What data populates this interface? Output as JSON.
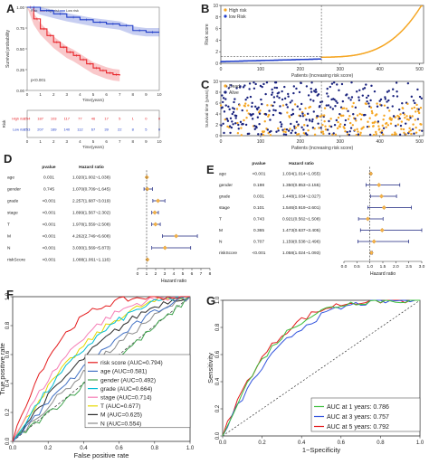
{
  "panel_labels": {
    "A": "A",
    "B": "B",
    "C": "C",
    "D": "D",
    "E": "E",
    "F": "F",
    "G": "G"
  },
  "colors": {
    "high_risk": "#e8252a",
    "low_risk": "#1e3cc8",
    "orange": "#f5a623",
    "navy": "#1a237e",
    "forest_cross": "#f6b24a"
  },
  "chart_data": [
    {
      "id": "A",
      "type": "line",
      "kind": "kaplan-meier",
      "ylabel": "Survival probability",
      "xlabel": "Time(years)",
      "legend": [
        "Risk",
        "High risk",
        "Low risk"
      ],
      "pvalue_text": "p<0.001",
      "xlim": [
        0,
        10
      ],
      "ylim": [
        0,
        1
      ],
      "xticks": [
        "0",
        "1",
        "2",
        "3",
        "4",
        "5",
        "6",
        "7",
        "8",
        "9",
        "10"
      ],
      "yticks": [
        "0.00",
        "0.25",
        "0.50",
        "0.75",
        "1.00"
      ],
      "series": [
        {
          "name": "High risk",
          "x": [
            0,
            0.5,
            1,
            1.5,
            2,
            2.5,
            3,
            3.5,
            4,
            4.5,
            5,
            5.5,
            6,
            6.5,
            7
          ],
          "y": [
            1.0,
            0.86,
            0.74,
            0.66,
            0.58,
            0.52,
            0.46,
            0.42,
            0.37,
            0.32,
            0.27,
            0.24,
            0.21,
            0.19,
            0.18
          ]
        },
        {
          "name": "Low risk",
          "x": [
            0,
            1,
            2,
            3,
            4,
            5,
            6,
            7,
            8,
            9,
            10
          ],
          "y": [
            1.0,
            0.96,
            0.92,
            0.88,
            0.85,
            0.82,
            0.8,
            0.78,
            0.72,
            0.7,
            0.7
          ]
        }
      ],
      "risk_table": {
        "title": "Risk",
        "rows": [
          {
            "name": "High risk",
            "values": [
              "254",
              "187",
              "103",
              "117",
              "77",
              "46",
              "17",
              "5",
              "1",
              "0",
              "0"
            ]
          },
          {
            "name": "Low risk",
            "values": [
              "253",
              "207",
              "189",
              "140",
              "112",
              "67",
              "39",
              "22",
              "8",
              "5",
              "0"
            ]
          }
        ]
      }
    },
    {
      "id": "B",
      "type": "scatter",
      "ylabel": "Risk score",
      "xlabel": "Patients (increasing risk score)",
      "legend": [
        "High risk",
        "low Risk"
      ],
      "xlim": [
        0,
        510
      ],
      "ylim": [
        0,
        10
      ],
      "xticks": [
        "0",
        "100",
        "200",
        "300",
        "400",
        "500"
      ],
      "yticks": [
        "0",
        "2",
        "4",
        "6",
        "8",
        "10"
      ],
      "cutoff_x": 253
    },
    {
      "id": "C",
      "type": "scatter",
      "ylabel": "Survival time (years)",
      "xlabel": "Patients (increasing risk score)",
      "legend": [
        "Dead",
        "Alive"
      ],
      "xlim": [
        0,
        510
      ],
      "ylim": [
        0,
        10
      ],
      "xticks": [
        "0",
        "100",
        "200",
        "300",
        "400",
        "500"
      ],
      "yticks": [
        "0",
        "2",
        "4",
        "6",
        "8",
        "10"
      ],
      "cutoff_x": 253
    },
    {
      "id": "D",
      "type": "forest",
      "header": [
        "pvalue",
        "Hazard ratio"
      ],
      "xlabel": "Hazard ratio",
      "xlim": [
        0,
        8
      ],
      "xticks": [
        "0",
        "1",
        "2",
        "3",
        "4",
        "5",
        "6",
        "7",
        "8"
      ],
      "rows": [
        {
          "name": "age",
          "pvalue": "0.031",
          "hr_text": "1.020(1.002~1.038)",
          "hr": 1.02,
          "lo": 1.002,
          "hi": 1.038
        },
        {
          "name": "gender",
          "pvalue": "0.745",
          "hr_text": "1.070(0.709~1.645)",
          "hr": 1.07,
          "lo": 0.709,
          "hi": 1.645
        },
        {
          "name": "grade",
          "pvalue": "<0.001",
          "hr_text": "2.257(1.687~3.019)",
          "hr": 2.257,
          "lo": 1.687,
          "hi": 3.019
        },
        {
          "name": "stage",
          "pvalue": "<0.001",
          "hr_text": "1.899(1.567~2.302)",
          "hr": 1.899,
          "lo": 1.567,
          "hi": 2.302
        },
        {
          "name": "T",
          "pvalue": "<0.001",
          "hr_text": "1.978(1.559~2.508)",
          "hr": 1.978,
          "lo": 1.559,
          "hi": 2.508
        },
        {
          "name": "M",
          "pvalue": "<0.001",
          "hr_text": "4.262(2.749~6.608)",
          "hr": 4.262,
          "lo": 2.749,
          "hi": 6.608
        },
        {
          "name": "N",
          "pvalue": "<0.001",
          "hr_text": "3.030(1.569~5.873)",
          "hr": 3.03,
          "lo": 1.569,
          "hi": 5.873
        },
        {
          "name": "riskScore",
          "pvalue": "<0.001",
          "hr_text": "1.088(1.061~1.116)",
          "hr": 1.088,
          "lo": 1.061,
          "hi": 1.116
        }
      ]
    },
    {
      "id": "E",
      "type": "forest",
      "header": [
        "pvalue",
        "Hazard ratio"
      ],
      "xlabel": "Hazard ratio",
      "xlim": [
        0,
        3
      ],
      "xticks": [
        "0.0",
        "0.5",
        "1.0",
        "1.5",
        "2.0",
        "2.5",
        "3.0"
      ],
      "rows": [
        {
          "name": "age",
          "pvalue": "<0.001",
          "hr_text": "1.034(1.014~1.055)",
          "hr": 1.034,
          "lo": 1.014,
          "hi": 1.055
        },
        {
          "name": "gender",
          "pvalue": "0.198",
          "hr_text": "1.350(0.853~2.155)",
          "hr": 1.35,
          "lo": 0.853,
          "hi": 2.155
        },
        {
          "name": "grade",
          "pvalue": "0.031",
          "hr_text": "1.448(1.034~2.027)",
          "hr": 1.448,
          "lo": 1.034,
          "hi": 2.027
        },
        {
          "name": "stage",
          "pvalue": "0.101",
          "hr_text": "1.546(0.919~2.601)",
          "hr": 1.546,
          "lo": 0.919,
          "hi": 2.601
        },
        {
          "name": "T",
          "pvalue": "0.743",
          "hr_text": "0.921(0.562~1.508)",
          "hr": 0.921,
          "lo": 0.562,
          "hi": 1.508
        },
        {
          "name": "M",
          "pvalue": "0.365",
          "hr_text": "1.473(0.637~3.405)",
          "hr": 1.473,
          "lo": 0.637,
          "hi": 3.405
        },
        {
          "name": "N",
          "pvalue": "0.707",
          "hr_text": "1.159(0.538~2.496)",
          "hr": 1.159,
          "lo": 0.538,
          "hi": 2.496
        },
        {
          "name": "riskScore",
          "pvalue": "<0.001",
          "hr_text": "1.058(1.024~1.093)",
          "hr": 1.058,
          "lo": 1.024,
          "hi": 1.093
        }
      ]
    },
    {
      "id": "F",
      "type": "line",
      "kind": "roc",
      "xlabel": "False positive rate",
      "ylabel": "True positive rate",
      "xlim": [
        0,
        1
      ],
      "ylim": [
        0,
        1
      ],
      "xticks": [
        "0.0",
        "0.2",
        "0.4",
        "0.6",
        "0.8",
        "1.0"
      ],
      "yticks": [
        "0.0",
        "0.2",
        "0.4",
        "0.6",
        "0.8",
        "1.0"
      ],
      "series": [
        {
          "name": "risk score (AUC=0.794)",
          "color": "#e41a1c",
          "auc": 0.794
        },
        {
          "name": "age (AUC=0.581)",
          "color": "#4472c4",
          "auc": 0.581
        },
        {
          "name": "gender (AUC=0.492)",
          "color": "#3fa34d",
          "auc": 0.492
        },
        {
          "name": "grade (AUC=0.664)",
          "color": "#00bcd4",
          "auc": 0.664
        },
        {
          "name": "stage (AUC=0.714)",
          "color": "#f57eb6",
          "auc": 0.714
        },
        {
          "name": "T (AUC=0.677)",
          "color": "#e6d800",
          "auc": 0.677
        },
        {
          "name": "M (AUC=0.625)",
          "color": "#2c2c2c",
          "auc": 0.625
        },
        {
          "name": "N (AUC=0.554)",
          "color": "#8a8a8a",
          "auc": 0.554
        }
      ]
    },
    {
      "id": "G",
      "type": "line",
      "kind": "roc",
      "xlabel": "1−Specificity",
      "ylabel": "Sensitivity",
      "xlim": [
        0,
        1
      ],
      "ylim": [
        0,
        1
      ],
      "xticks": [
        "0.0",
        "0.2",
        "0.4",
        "0.6",
        "0.8",
        "1.0"
      ],
      "yticks": [
        "0.0",
        "0.2",
        "0.4",
        "0.6",
        "0.8",
        "1.0"
      ],
      "series": [
        {
          "name": "AUC at 1 years: 0.786",
          "color": "#3fbf3f",
          "auc": 0.786
        },
        {
          "name": "AUC at 3 years: 0.757",
          "color": "#3355dd",
          "auc": 0.757
        },
        {
          "name": "AUC at 5 years: 0.792",
          "color": "#e41a1c",
          "auc": 0.792
        }
      ]
    }
  ]
}
